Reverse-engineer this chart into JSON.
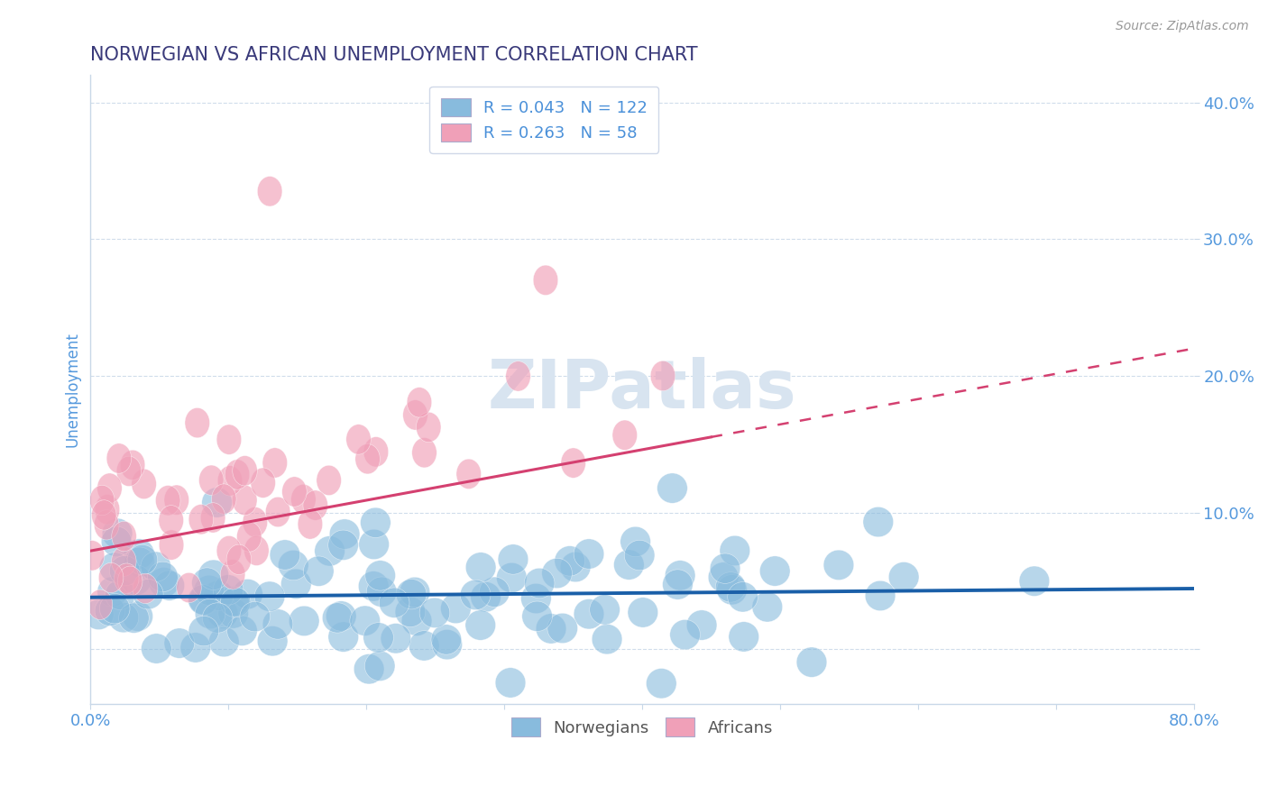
{
  "title": "NORWEGIAN VS AFRICAN UNEMPLOYMENT CORRELATION CHART",
  "source": "Source: ZipAtlas.com",
  "ylabel": "Unemployment",
  "xlim": [
    0.0,
    0.8
  ],
  "ylim": [
    -0.04,
    0.42
  ],
  "yticks": [
    0.0,
    0.1,
    0.2,
    0.3,
    0.4
  ],
  "ytick_labels": [
    "",
    "10.0%",
    "20.0%",
    "30.0%",
    "40.0%"
  ],
  "xticks": [
    0.0,
    0.1,
    0.2,
    0.3,
    0.4,
    0.5,
    0.6,
    0.7,
    0.8
  ],
  "xtick_labels": [
    "0.0%",
    "",
    "",
    "",
    "",
    "",
    "",
    "",
    "80.0%"
  ],
  "norwegian_R": 0.043,
  "norwegian_N": 122,
  "african_R": 0.263,
  "african_N": 58,
  "blue_color": "#88bbdd",
  "pink_color": "#f0a0b8",
  "blue_line_color": "#1a5fa8",
  "pink_line_color": "#d44070",
  "title_color": "#3a3a7a",
  "label_color": "#5599dd",
  "watermark_color": "#d8e4f0",
  "background_color": "#ffffff",
  "legend_R_color": "#4a90d9",
  "legend_label_color": "#555555"
}
